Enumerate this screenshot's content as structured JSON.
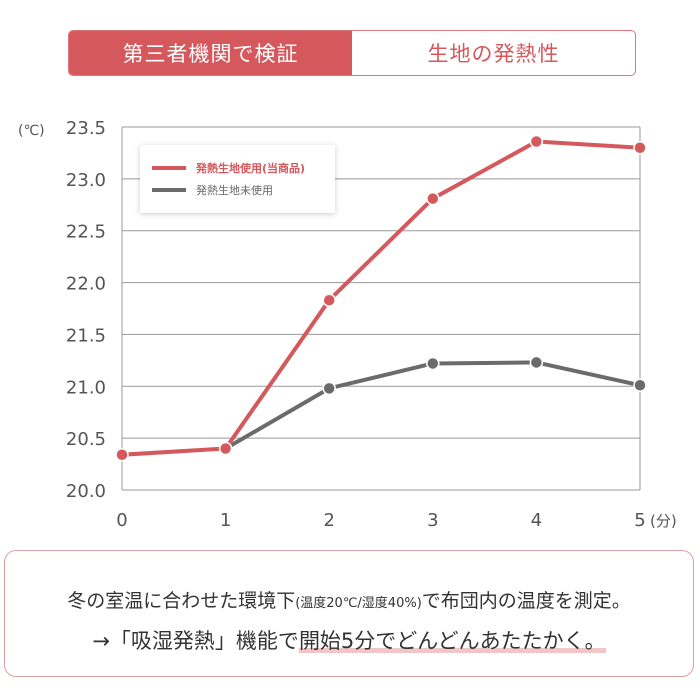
{
  "tabs": [
    {
      "label": "第三者機関で検証",
      "active": true
    },
    {
      "label": "生地の発熱性",
      "active": false
    }
  ],
  "chart_data": {
    "type": "line",
    "x": [
      0,
      1,
      2,
      3,
      4,
      5
    ],
    "x_tick_labels": [
      "0",
      "1",
      "2",
      "3",
      "4",
      "5"
    ],
    "xlabel": "(分)",
    "ylabel": "(℃)",
    "ylim": [
      20.0,
      23.5
    ],
    "y_ticks": [
      "20.0",
      "20.5",
      "21.0",
      "21.5",
      "22.0",
      "22.5",
      "23.0",
      "23.5"
    ],
    "grid": true,
    "legend_position": "top-left",
    "series": [
      {
        "name": "発熱生地使用(当商品)",
        "color": "#d5585c",
        "values": [
          20.34,
          20.4,
          21.83,
          22.81,
          23.36,
          23.3
        ]
      },
      {
        "name": "発熱生地未使用",
        "color": "#6b6b6b",
        "values": [
          null,
          20.4,
          20.98,
          21.22,
          21.23,
          21.01
        ]
      }
    ]
  },
  "note": {
    "line1_a": "冬の室温に合わせた環境下",
    "line1_small": "(温度20℃/湿度40%)",
    "line1_b": "で布団内の温度を測定。",
    "line2_a": "→「吸湿発熱」機能で",
    "line2_highlight": "開始5分でどんどんあたたかく。"
  }
}
